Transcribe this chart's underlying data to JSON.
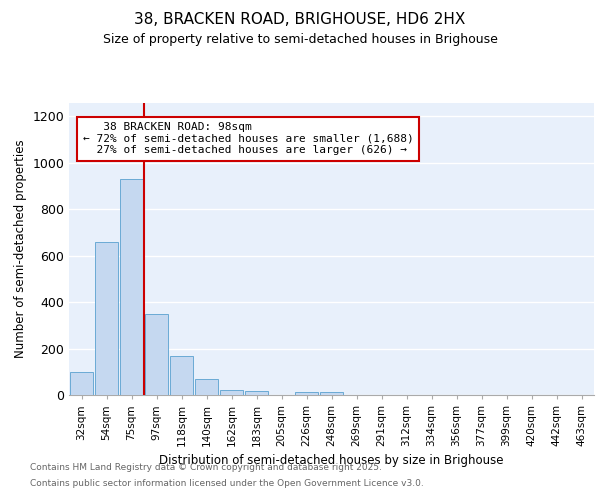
{
  "title1": "38, BRACKEN ROAD, BRIGHOUSE, HD6 2HX",
  "title2": "Size of property relative to semi-detached houses in Brighouse",
  "xlabel": "Distribution of semi-detached houses by size in Brighouse",
  "ylabel": "Number of semi-detached properties",
  "bar_labels": [
    "32sqm",
    "54sqm",
    "75sqm",
    "97sqm",
    "118sqm",
    "140sqm",
    "162sqm",
    "183sqm",
    "205sqm",
    "226sqm",
    "248sqm",
    "269sqm",
    "291sqm",
    "312sqm",
    "334sqm",
    "356sqm",
    "377sqm",
    "399sqm",
    "420sqm",
    "442sqm",
    "463sqm"
  ],
  "bar_values": [
    100,
    660,
    930,
    350,
    170,
    68,
    22,
    16,
    0,
    14,
    14,
    0,
    0,
    0,
    0,
    0,
    0,
    0,
    0,
    0,
    0
  ],
  "bar_color": "#c5d8f0",
  "bar_edge_color": "#6aaad4",
  "property_label": "38 BRACKEN ROAD: 98sqm",
  "pct_smaller": 72,
  "pct_larger": 27,
  "n_smaller": 1688,
  "n_larger": 626,
  "vline_color": "#cc0000",
  "annotation_box_color": "#cc0000",
  "ylim": [
    0,
    1260
  ],
  "yticks": [
    0,
    200,
    400,
    600,
    800,
    1000,
    1200
  ],
  "bg_color": "#e8f0fb",
  "grid_color": "#ffffff",
  "fig_bg": "#ffffff",
  "footer1": "Contains HM Land Registry data © Crown copyright and database right 2025.",
  "footer2": "Contains public sector information licensed under the Open Government Licence v3.0."
}
